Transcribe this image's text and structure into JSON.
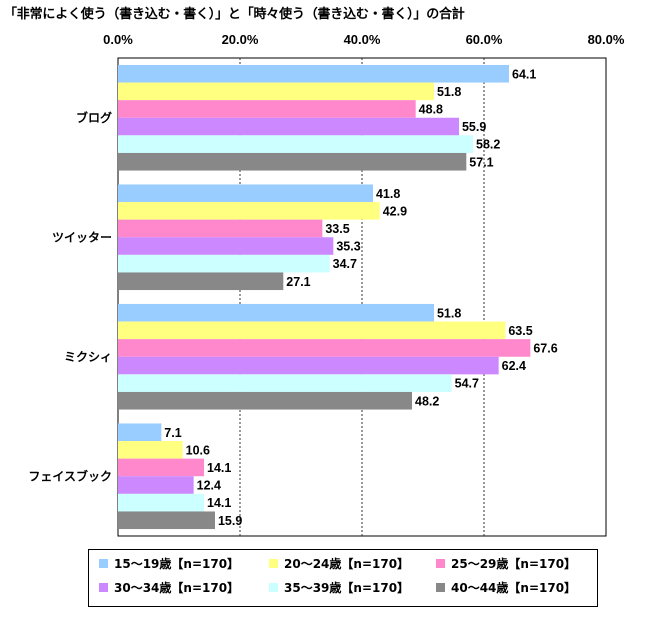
{
  "chart_data": {
    "type": "bar",
    "orientation": "horizontal",
    "title": "「非常によく使う（書き込む・書く）」と「時々使う（書き込む・書く）」の合計",
    "x_ticks": [
      "0.0%",
      "20.0%",
      "40.0%",
      "60.0%",
      "80.0%"
    ],
    "xlim": [
      0,
      80
    ],
    "grid": "vertical dashed",
    "legend_position": "bottom",
    "categories": [
      "ブログ",
      "ツイッター",
      "ミクシィ",
      "フェイスブック"
    ],
    "series": [
      {
        "name": "15～19歳【n=170】",
        "color": "#99ccff",
        "values": [
          64.1,
          41.8,
          51.8,
          7.1
        ]
      },
      {
        "name": "20～24歳【n=170】",
        "color": "#ffff80",
        "values": [
          51.8,
          42.9,
          63.5,
          10.6
        ]
      },
      {
        "name": "25～29歳【n=170】",
        "color": "#ff88cc",
        "values": [
          48.8,
          33.5,
          67.6,
          14.1
        ]
      },
      {
        "name": "30～34歳【n=170】",
        "color": "#cc88ff",
        "values": [
          55.9,
          35.3,
          62.4,
          12.4
        ]
      },
      {
        "name": "35～39歳【n=170】",
        "color": "#ccffff",
        "values": [
          58.2,
          34.7,
          54.7,
          14.1
        ]
      },
      {
        "name": "40～44歳【n=170】",
        "color": "#888888",
        "values": [
          57.1,
          27.1,
          48.2,
          15.9
        ]
      }
    ]
  }
}
